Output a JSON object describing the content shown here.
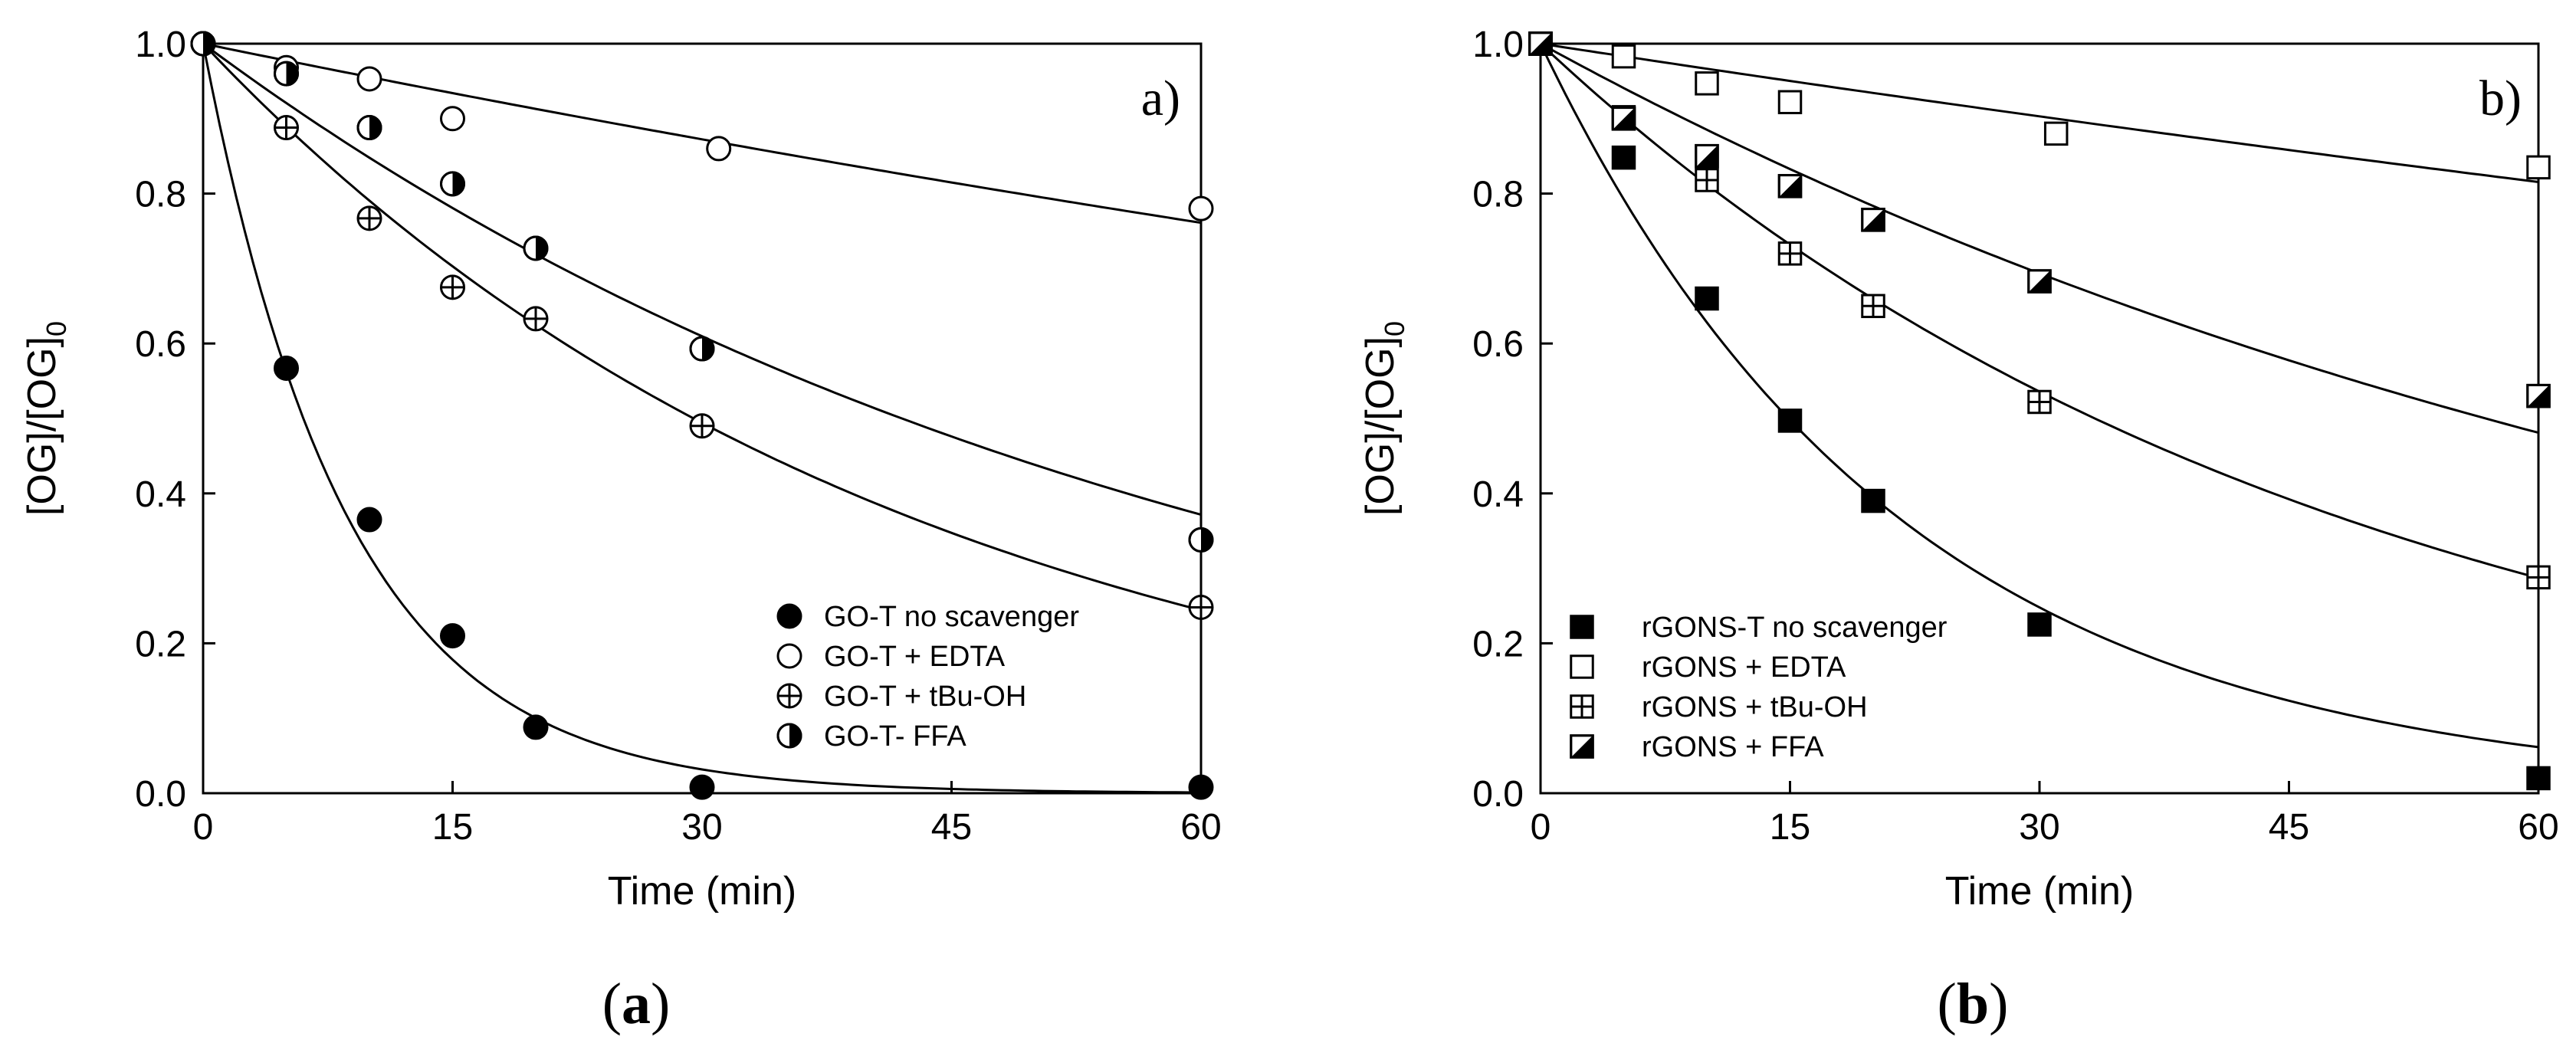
{
  "chart_data": [
    {
      "type": "scatter",
      "panel_label": "a)",
      "caption_letter": "a",
      "xlabel": "Time (min)",
      "ylabel": "[OG]/[OG]",
      "ylabel_sub": "0",
      "xlim": [
        0,
        60
      ],
      "ylim": [
        0,
        1
      ],
      "x_ticks": [
        0,
        15,
        30,
        45,
        60
      ],
      "x_tick_labels": [
        "0",
        "15",
        "30",
        "45",
        "60"
      ],
      "y_ticks": [
        0,
        0.2,
        0.4,
        0.6,
        0.8,
        1.0
      ],
      "y_tick_labels": [
        "0.0",
        "0.2",
        "0.4",
        "0.6",
        "0.8",
        "1.0"
      ],
      "legend_position": "bottom-right",
      "series": [
        {
          "name": "GO-T no scavenger",
          "marker": "filled-circle",
          "k": 0.115,
          "points": [
            [
              0,
              1.0
            ],
            [
              5,
              0.567
            ],
            [
              10,
              0.365
            ],
            [
              15,
              0.21
            ],
            [
              20,
              0.088
            ],
            [
              30,
              0.008
            ],
            [
              60,
              0.008
            ]
          ]
        },
        {
          "name": "GO-T + EDTA",
          "marker": "open-circle",
          "k": 0.00455,
          "points": [
            [
              0,
              1.0
            ],
            [
              5,
              0.968
            ],
            [
              10,
              0.953
            ],
            [
              15,
              0.9
            ],
            [
              31,
              0.86
            ],
            [
              60,
              0.78
            ]
          ]
        },
        {
          "name": "GO-T + tBu-OH",
          "marker": "crossed-circle",
          "k": 0.0235,
          "points": [
            [
              0,
              1.0
            ],
            [
              5,
              0.888
            ],
            [
              10,
              0.767
            ],
            [
              15,
              0.675
            ],
            [
              20,
              0.633
            ],
            [
              30,
              0.49
            ],
            [
              60,
              0.248
            ]
          ]
        },
        {
          "name": "GO-T- FFA",
          "marker": "half-circle",
          "k": 0.0165,
          "points": [
            [
              0,
              1.0
            ],
            [
              5,
              0.96
            ],
            [
              10,
              0.888
            ],
            [
              15,
              0.813
            ],
            [
              20,
              0.727
            ],
            [
              30,
              0.593
            ],
            [
              60,
              0.338
            ]
          ]
        }
      ]
    },
    {
      "type": "scatter",
      "panel_label": "b)",
      "caption_letter": "b",
      "xlabel": "Time (min)",
      "ylabel": "[OG]/[OG]",
      "ylabel_sub": "0",
      "xlim": [
        0,
        60
      ],
      "ylim": [
        0,
        1
      ],
      "x_ticks": [
        0,
        15,
        30,
        45,
        60
      ],
      "x_tick_labels": [
        "0",
        "15",
        "30",
        "45",
        "60"
      ],
      "y_ticks": [
        0,
        0.2,
        0.4,
        0.6,
        0.8,
        1.0
      ],
      "y_tick_labels": [
        "0.0",
        "0.2",
        "0.4",
        "0.6",
        "0.8",
        "1.0"
      ],
      "legend_position": "bottom-left",
      "series": [
        {
          "name": "rGONS-T no scavenger",
          "marker": "filled-square",
          "k": 0.0465,
          "points": [
            [
              0,
              1.0
            ],
            [
              5,
              0.848
            ],
            [
              10,
              0.66
            ],
            [
              15,
              0.497
            ],
            [
              20,
              0.39
            ],
            [
              30,
              0.225
            ],
            [
              60,
              0.02
            ]
          ]
        },
        {
          "name": "rGONS + EDTA",
          "marker": "open-square",
          "k": 0.0034,
          "points": [
            [
              0,
              1.0
            ],
            [
              5,
              0.983
            ],
            [
              10,
              0.947
            ],
            [
              15,
              0.922
            ],
            [
              31,
              0.88
            ],
            [
              60,
              0.835
            ]
          ]
        },
        {
          "name": "rGONS + tBu-OH",
          "marker": "crossed-square",
          "k": 0.0208,
          "points": [
            [
              0,
              1.0
            ],
            [
              5,
              0.902
            ],
            [
              10,
              0.818
            ],
            [
              15,
              0.72
            ],
            [
              20,
              0.65
            ],
            [
              30,
              0.522
            ],
            [
              60,
              0.288
            ]
          ]
        },
        {
          "name": "rGONS + FFA",
          "marker": "diag-square",
          "k": 0.0122,
          "points": [
            [
              0,
              1.0
            ],
            [
              5,
              0.9
            ],
            [
              10,
              0.85
            ],
            [
              15,
              0.81
            ],
            [
              20,
              0.765
            ],
            [
              30,
              0.683
            ],
            [
              60,
              0.53
            ]
          ]
        }
      ]
    }
  ]
}
